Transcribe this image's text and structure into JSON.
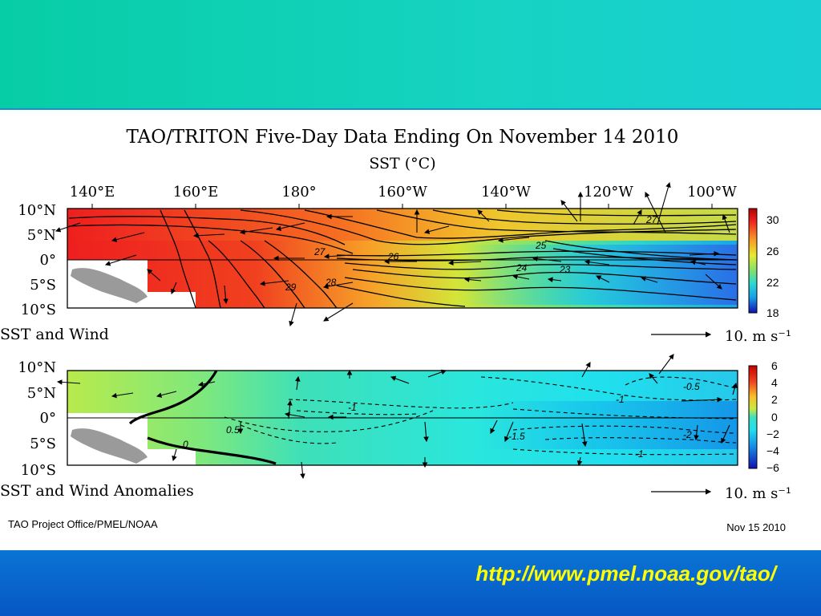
{
  "page": {
    "title": "TAO/TRITON Five-Day Data Ending On November 14 2010",
    "subtitle": "SST (°C)",
    "credit": "TAO Project Office/PMEL/NOAA",
    "date": "Nov 15 2010",
    "url": "http://www.pmel.noaa.gov/tao/"
  },
  "chart_data": [
    {
      "type": "heatmap",
      "title": "SST and Wind",
      "x_ticks": [
        "140°E",
        "160°E",
        "180°",
        "160°W",
        "140°W",
        "120°W",
        "100°W"
      ],
      "y_ticks": [
        "10°N",
        "5°N",
        "0°",
        "5°S",
        "10°S"
      ],
      "colorbar": {
        "ticks": [
          "30",
          "26",
          "22",
          "18"
        ],
        "range": [
          18,
          31
        ]
      },
      "contour_labels": [
        "27",
        "26",
        "25",
        "24",
        "23",
        "29",
        "28",
        "27"
      ],
      "wind_scale": "10. m s⁻¹"
    },
    {
      "type": "heatmap",
      "title": "SST and Wind Anomalies",
      "x_ticks": [
        "140°E",
        "160°E",
        "180°",
        "160°W",
        "140°W",
        "120°W",
        "100°W"
      ],
      "y_ticks": [
        "10°N",
        "5°N",
        "0°",
        "5°S",
        "10°S"
      ],
      "colorbar": {
        "ticks": [
          "6",
          "4",
          "2",
          "0",
          "−2",
          "−4",
          "−6"
        ],
        "range": [
          -6,
          6
        ]
      },
      "contour_labels": [
        "-0.5",
        "-1",
        "-1",
        "0.5",
        "0",
        "-1.5",
        "-2",
        "-1"
      ],
      "wind_scale": "10. m s⁻¹"
    }
  ],
  "colors": {
    "top_band": "#12d0b8",
    "bottom_band": "#0a66cc",
    "url_text": "#ffff00",
    "land": "#9a9a9a"
  }
}
